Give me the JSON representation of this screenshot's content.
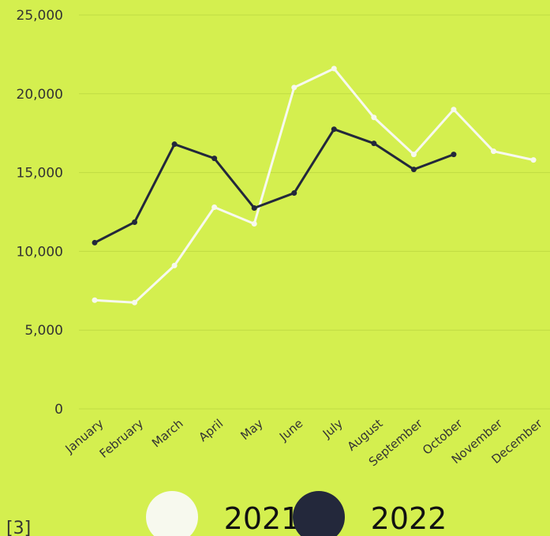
{
  "chart_data": {
    "type": "line",
    "categories": [
      "January",
      "February",
      "March",
      "April",
      "May",
      "June",
      "July",
      "August",
      "September",
      "October",
      "November",
      "December"
    ],
    "series": [
      {
        "name": "2021",
        "color": "#f7f9ee",
        "values": [
          6900,
          6750,
          9100,
          12800,
          11750,
          20400,
          21600,
          18500,
          16150,
          19000,
          16350,
          15800
        ]
      },
      {
        "name": "2022",
        "color": "#23283b",
        "values": [
          10550,
          11850,
          16800,
          15900,
          12750,
          13700,
          17750,
          16850,
          15200,
          16150,
          null,
          null
        ]
      }
    ],
    "yticks": [
      "0",
      "5,000",
      "10,000",
      "15,000",
      "20,000",
      "25,000"
    ],
    "ytick_values": [
      0,
      5000,
      10000,
      15000,
      20000,
      25000
    ],
    "ylim": [
      0,
      25000
    ],
    "grid": true,
    "legend_position": "bottom"
  },
  "footnote": "[3]"
}
